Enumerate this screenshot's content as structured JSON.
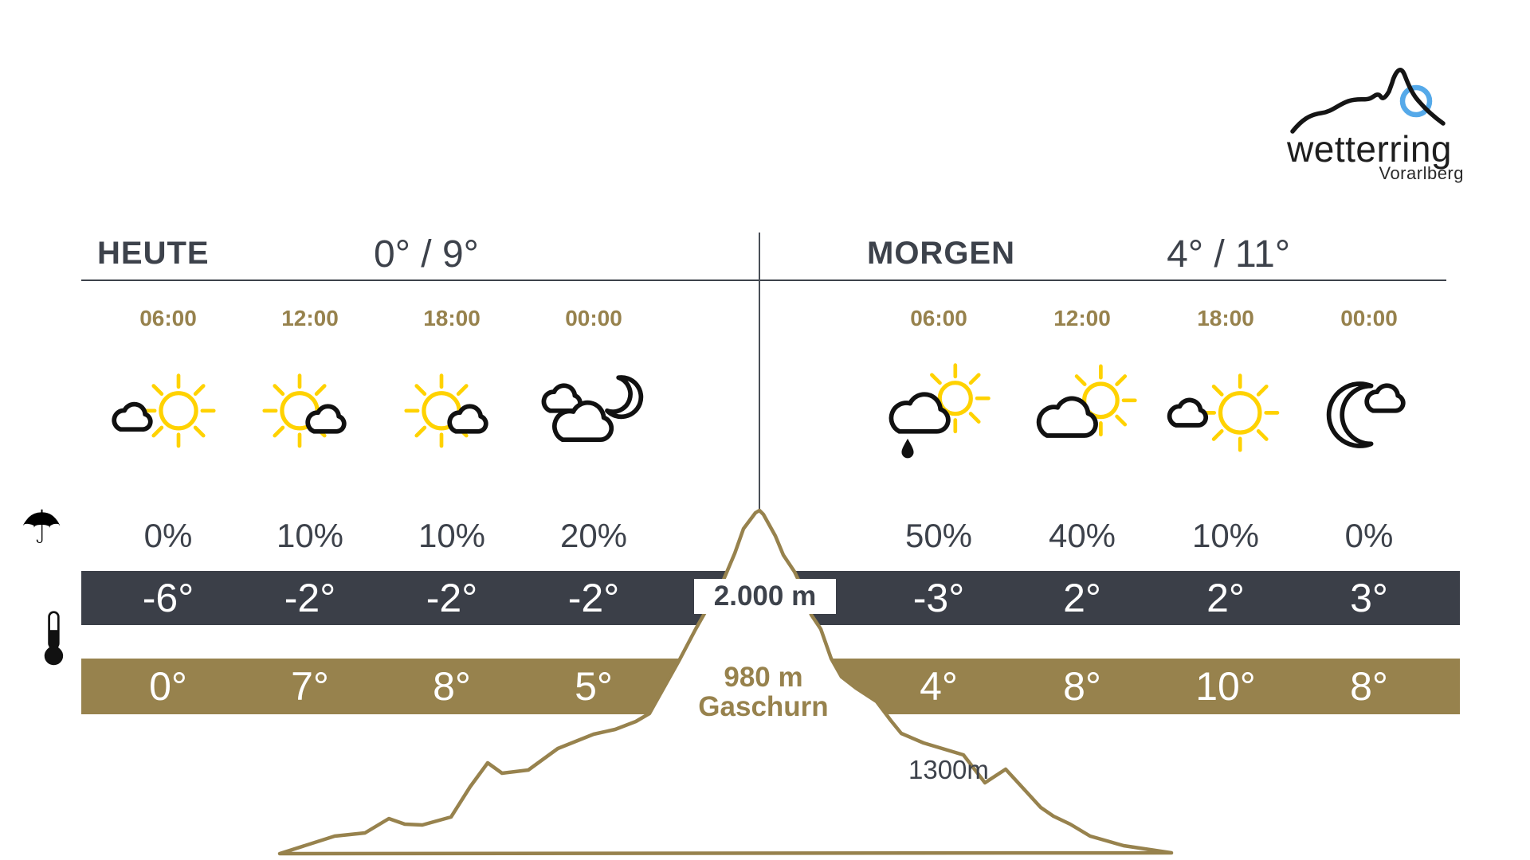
{
  "logo": {
    "brand": "wetterring",
    "region": "Vorarlberg"
  },
  "labels": {
    "upper_altitude": "2.000 m",
    "valley_altitude": "980 m",
    "valley_name": "Gaschurn",
    "mid_altitude": "1300m"
  },
  "days": [
    {
      "label": "HEUTE",
      "minmax": "0° / 9°",
      "columns": [
        {
          "time": "06:00",
          "icon": "cloud-left-sun",
          "pop": "0%",
          "temp_2000m": "-6°",
          "temp_980m": "0°"
        },
        {
          "time": "12:00",
          "icon": "sun-cloud-right",
          "pop": "10%",
          "temp_2000m": "-2°",
          "temp_980m": "7°"
        },
        {
          "time": "18:00",
          "icon": "sun-cloud-right",
          "pop": "10%",
          "temp_2000m": "-2°",
          "temp_980m": "8°"
        },
        {
          "time": "00:00",
          "icon": "clouds-moon",
          "pop": "20%",
          "temp_2000m": "-2°",
          "temp_980m": "5°"
        }
      ]
    },
    {
      "label": "MORGEN",
      "minmax": "4° / 11°",
      "columns": [
        {
          "time": "06:00",
          "icon": "rain-cloud-sun",
          "pop": "50%",
          "temp_2000m": "-3°",
          "temp_980m": "4°"
        },
        {
          "time": "12:00",
          "icon": "cloud-sun",
          "pop": "40%",
          "temp_2000m": "2°",
          "temp_980m": "8°"
        },
        {
          "time": "18:00",
          "icon": "small-cloud-sun",
          "pop": "10%",
          "temp_2000m": "2°",
          "temp_980m": "10°"
        },
        {
          "time": "00:00",
          "icon": "moon-small-cloud",
          "pop": "0%",
          "temp_2000m": "3°",
          "temp_980m": "8°"
        }
      ]
    }
  ],
  "colors": {
    "accent_gold": "#97824d",
    "dark_text": "#3d424b",
    "band_dark": "#3b3f48",
    "sun_yellow": "#ffd200",
    "logo_blue": "#55a9e9",
    "white": "#ffffff"
  }
}
